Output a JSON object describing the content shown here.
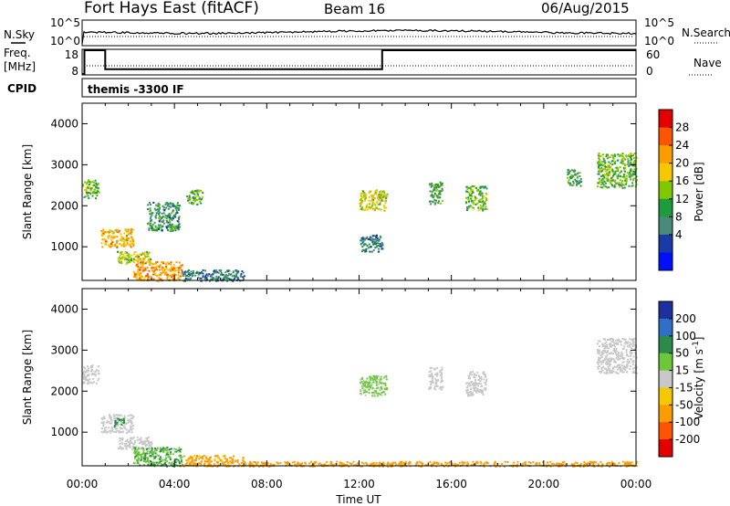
{
  "header": {
    "station": "Fort Hays East (fitACF)",
    "beam": "Beam 16",
    "date": "06/Aug/2015"
  },
  "strips": {
    "nsky_label": "N.Sky",
    "nsky_ticks": [
      "10^5",
      "10^0"
    ],
    "nsearch_label": "N.Search",
    "nsearch_ticks": [
      "10^5",
      "10^0"
    ],
    "freq_label_1": "Freq.",
    "freq_label_2": "[MHz]",
    "freq_ticks": [
      "18",
      "8"
    ],
    "nave_label": "Nave",
    "nave_ticks": [
      "60",
      "0"
    ],
    "cpid_label": "CPID",
    "cpid_value": "themis -3300 IF"
  },
  "axes": {
    "ylabel": "Slant Range [km]",
    "xlabel": "Time UT",
    "yticks": [
      "4000",
      "3000",
      "2000",
      "1000"
    ],
    "xticks": [
      "00:00",
      "04:00",
      "08:00",
      "12:00",
      "16:00",
      "20:00",
      "00:00"
    ]
  },
  "power_scale": {
    "label": "Power [dB]",
    "ticks": [
      "28",
      "24",
      "20",
      "16",
      "12",
      "8",
      "4"
    ],
    "colors": [
      "#e30000",
      "#ff5400",
      "#ff9c00",
      "#f5c800",
      "#82c800",
      "#1e9b3c",
      "#4a8a7a",
      "#1a3aa8",
      "#0010ff"
    ]
  },
  "velocity_scale": {
    "label_main": "Velocity [m s",
    "label_sup": "-1",
    "label_end": "]",
    "ticks": [
      "200",
      "100",
      "50",
      "15",
      "-15",
      "-50",
      "-100",
      "-200"
    ],
    "colors": [
      "#1e2fa0",
      "#2f6fc8",
      "#2c8a4a",
      "#6cc83a",
      "#c8c8c8",
      "#f5c800",
      "#ff9c00",
      "#ff5400",
      "#e30000"
    ]
  },
  "chart_data": [
    {
      "type": "heatmap",
      "title": "Power",
      "xlabel": "Time UT",
      "ylabel": "Slant Range [km]",
      "xlim_hours": [
        0,
        24
      ],
      "ylim_km": [
        180,
        4500
      ],
      "colorbar_label": "Power [dB]",
      "colorbar_range_db": [
        0,
        32
      ],
      "regions": [
        {
          "t": [
            0.0,
            0.7
          ],
          "r": [
            2200,
            2650
          ],
          "db": 14
        },
        {
          "t": [
            0.8,
            2.2
          ],
          "r": [
            1000,
            1450
          ],
          "db": 22
        },
        {
          "t": [
            1.5,
            3.0
          ],
          "r": [
            600,
            900
          ],
          "db": 18
        },
        {
          "t": [
            2.2,
            4.3
          ],
          "r": [
            180,
            650
          ],
          "db": 24
        },
        {
          "t": [
            4.3,
            7.0
          ],
          "r": [
            180,
            450
          ],
          "db": 8
        },
        {
          "t": [
            2.8,
            4.2
          ],
          "r": [
            1400,
            2100
          ],
          "db": 10
        },
        {
          "t": [
            4.5,
            5.2
          ],
          "r": [
            2050,
            2400
          ],
          "db": 14
        },
        {
          "t": [
            12.0,
            13.2
          ],
          "r": [
            1900,
            2400
          ],
          "db": 18
        },
        {
          "t": [
            12.0,
            13.0
          ],
          "r": [
            900,
            1300
          ],
          "db": 8
        },
        {
          "t": [
            15.0,
            15.6
          ],
          "r": [
            2050,
            2600
          ],
          "db": 12
        },
        {
          "t": [
            16.6,
            17.5
          ],
          "r": [
            1900,
            2500
          ],
          "db": 14
        },
        {
          "t": [
            21.0,
            21.6
          ],
          "r": [
            2500,
            2900
          ],
          "db": 12
        },
        {
          "t": [
            22.3,
            24.0
          ],
          "r": [
            2450,
            3300
          ],
          "db": 14
        }
      ]
    },
    {
      "type": "heatmap",
      "title": "Velocity",
      "xlabel": "Time UT",
      "ylabel": "Slant Range [km]",
      "xlim_hours": [
        0,
        24
      ],
      "ylim_km": [
        180,
        4500
      ],
      "colorbar_label": "Velocity [m s-1]",
      "colorbar_range_ms": [
        -250,
        250
      ],
      "regions": [
        {
          "t": [
            0.0,
            0.7
          ],
          "r": [
            2200,
            2650
          ],
          "v": 0
        },
        {
          "t": [
            0.8,
            2.2
          ],
          "r": [
            1000,
            1450
          ],
          "v": 0
        },
        {
          "t": [
            1.3,
            1.8
          ],
          "r": [
            1150,
            1350
          ],
          "v": 40
        },
        {
          "t": [
            1.5,
            3.0
          ],
          "r": [
            600,
            900
          ],
          "v": 0
        },
        {
          "t": [
            2.2,
            4.3
          ],
          "r": [
            180,
            650
          ],
          "v": 30
        },
        {
          "t": [
            4.3,
            7.0
          ],
          "r": [
            180,
            450
          ],
          "v": -40
        },
        {
          "t": [
            7.0,
            24.0
          ],
          "r": [
            180,
            300
          ],
          "v": -60
        },
        {
          "t": [
            12.0,
            13.2
          ],
          "r": [
            1900,
            2400
          ],
          "v": 20
        },
        {
          "t": [
            15.0,
            15.6
          ],
          "r": [
            2050,
            2600
          ],
          "v": 0
        },
        {
          "t": [
            16.6,
            17.5
          ],
          "r": [
            1900,
            2500
          ],
          "v": 0
        },
        {
          "t": [
            22.3,
            24.0
          ],
          "r": [
            2450,
            3300
          ],
          "v": 0
        }
      ]
    },
    {
      "type": "line",
      "title": "Freq. [MHz]",
      "x_hours": [
        0,
        0.1,
        0.1,
        1.0,
        1.0,
        13.0,
        13.0,
        24.0
      ],
      "values": [
        8,
        8,
        18,
        18,
        10,
        10,
        18,
        18
      ],
      "ylim": [
        8,
        18
      ]
    }
  ]
}
